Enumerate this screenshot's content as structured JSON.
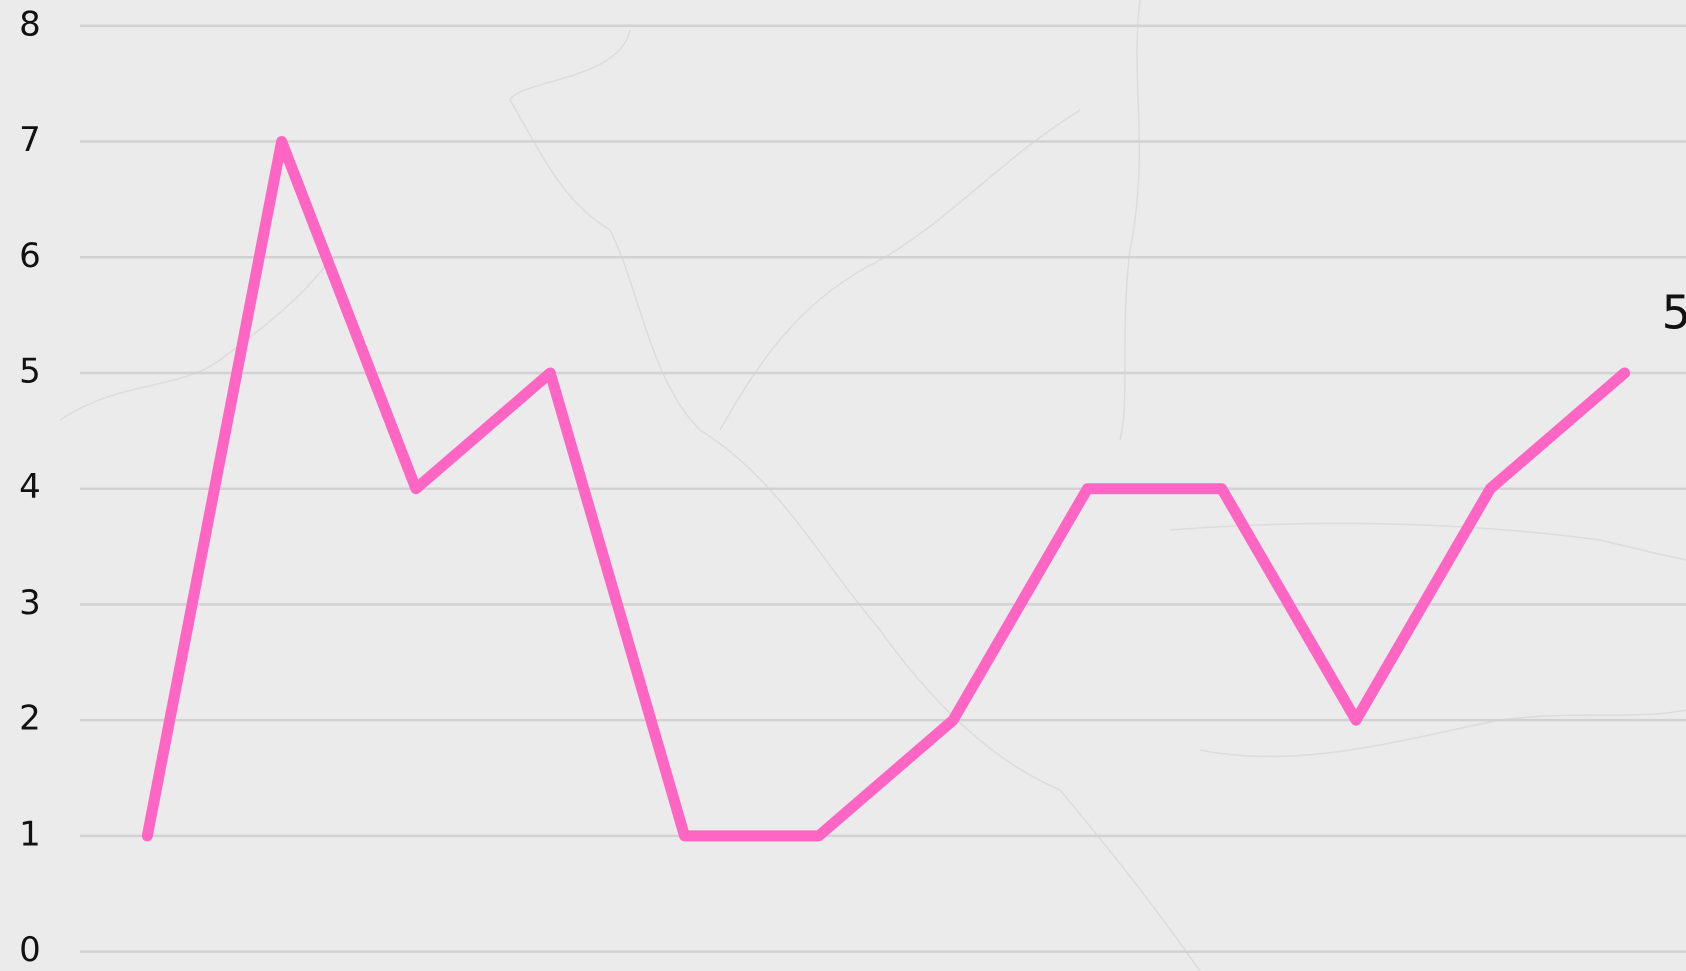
{
  "chart_data": {
    "type": "line",
    "series": [
      {
        "color": "#ff66c4",
        "values": [
          1,
          7,
          4,
          5,
          1,
          1,
          2,
          4,
          4,
          2,
          4,
          5
        ]
      }
    ],
    "ylim": [
      0,
      8
    ],
    "yticks": [
      0,
      1,
      2,
      3,
      4,
      5,
      6,
      7,
      8
    ],
    "grid": true,
    "last_value_label": true
  }
}
